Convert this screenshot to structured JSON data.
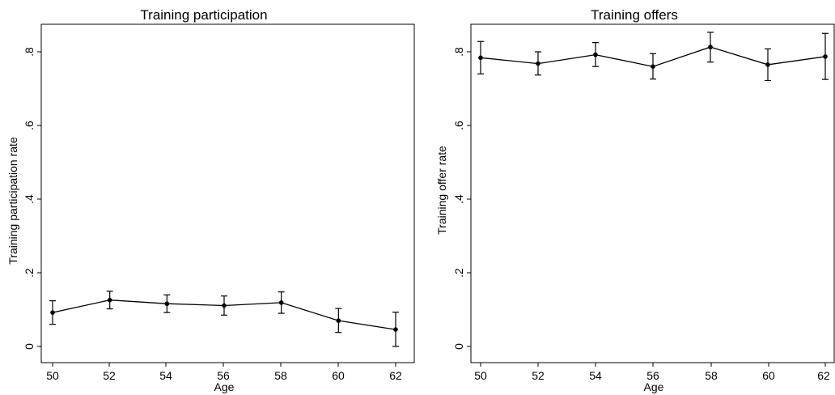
{
  "chart_data": [
    {
      "type": "line",
      "title": "Training participation",
      "xlabel": "Age",
      "ylabel": "Training participation rate",
      "xlim": [
        50,
        62
      ],
      "ylim": [
        0,
        0.8
      ],
      "xticks": [
        50,
        52,
        54,
        56,
        58,
        60,
        62
      ],
      "xtick_labels": [
        "50",
        "52",
        "54",
        "56",
        "58",
        "60",
        "62"
      ],
      "yticks": [
        0,
        0.2,
        0.4,
        0.6,
        0.8
      ],
      "ytick_labels": [
        "0",
        ".2",
        ".4",
        ".6",
        ".8"
      ],
      "grid": false,
      "error_bars": true,
      "series": [
        {
          "x": [
            50,
            52,
            54,
            56,
            58,
            60,
            62
          ],
          "y": [
            0.092,
            0.126,
            0.116,
            0.111,
            0.119,
            0.07,
            0.046
          ],
          "lower": [
            0.06,
            0.102,
            0.092,
            0.085,
            0.09,
            0.038,
            0.0
          ],
          "upper": [
            0.124,
            0.15,
            0.14,
            0.137,
            0.148,
            0.103,
            0.093
          ]
        }
      ]
    },
    {
      "type": "line",
      "title": "Training offers",
      "xlabel": "Age",
      "ylabel": "Training offer rate",
      "xlim": [
        50,
        62
      ],
      "ylim": [
        0,
        0.8
      ],
      "xticks": [
        50,
        52,
        54,
        56,
        58,
        60,
        62
      ],
      "xtick_labels": [
        "50",
        "52",
        "54",
        "56",
        "58",
        "60",
        "62"
      ],
      "yticks": [
        0,
        0.2,
        0.4,
        0.6,
        0.8
      ],
      "ytick_labels": [
        "0",
        ".2",
        ".4",
        ".6",
        ".8"
      ],
      "grid": false,
      "error_bars": true,
      "series": [
        {
          "x": [
            50,
            52,
            54,
            56,
            58,
            60,
            62
          ],
          "y": [
            0.784,
            0.768,
            0.792,
            0.76,
            0.813,
            0.765,
            0.787
          ],
          "lower": [
            0.74,
            0.737,
            0.76,
            0.726,
            0.772,
            0.722,
            0.725
          ],
          "upper": [
            0.828,
            0.8,
            0.825,
            0.795,
            0.853,
            0.808,
            0.85
          ]
        }
      ]
    }
  ]
}
